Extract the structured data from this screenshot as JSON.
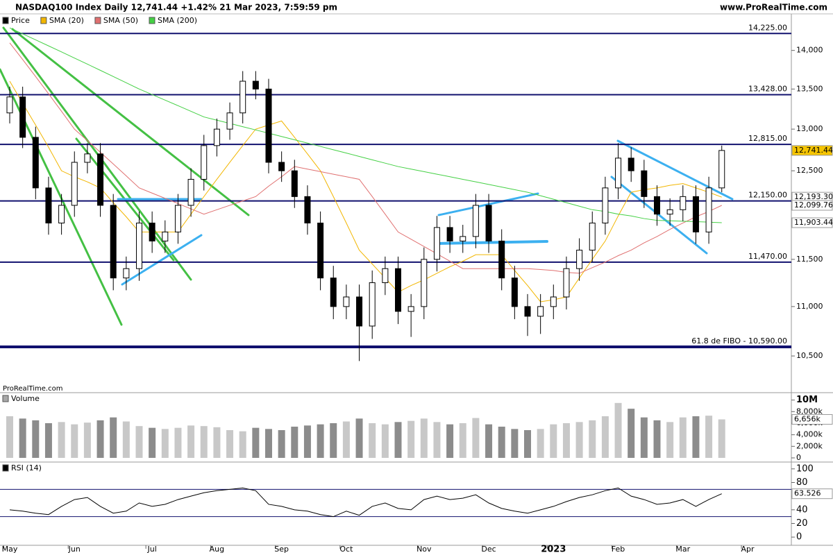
{
  "chart_data": {
    "type": "candlestick",
    "title": "NASDAQ100 Index Daily 12,741.44 +1.42% 21 Mar 2023, 7:59:59 pm",
    "source": "www.ProRealTime.com",
    "watermark": "ProRealTime.com",
    "price_name": "Price",
    "log_scale": true,
    "up_color": "#ffffff",
    "down_color": "#000000",
    "categories": [
      "May",
      null,
      null,
      null,
      null,
      "Jun",
      null,
      null,
      null,
      null,
      null,
      "Jul",
      null,
      null,
      null,
      null,
      "Aug",
      null,
      null,
      null,
      null,
      "Sep",
      null,
      null,
      null,
      null,
      "Oct",
      null,
      null,
      null,
      null,
      null,
      "Nov",
      null,
      null,
      null,
      null,
      "Dec",
      null,
      null,
      null,
      null,
      "2023",
      null,
      null,
      null,
      null,
      "Feb",
      null,
      null,
      null,
      null,
      "Mar",
      null,
      null,
      null,
      null,
      "Apr"
    ],
    "open": [
      13200,
      13400,
      12900,
      12300,
      11900,
      12100,
      12600,
      12700,
      12100,
      11300,
      11400,
      11900,
      11700,
      11800,
      12100,
      12400,
      12800,
      13000,
      13200,
      13600,
      13500,
      12600,
      12500,
      12200,
      11900,
      11300,
      11000,
      11100,
      10800,
      11250,
      11400,
      10950,
      11000,
      11500,
      11850,
      11700,
      11750,
      12100,
      11700,
      11300,
      11000,
      10900,
      11000,
      11100,
      11400,
      11600,
      11900,
      12300,
      12650,
      12500,
      12200,
      12000,
      12050,
      12200,
      11800,
      12300,
      null,
      null
    ],
    "high": [
      13530,
      13530,
      13030,
      12430,
      12230,
      12730,
      12830,
      12830,
      12230,
      11530,
      12030,
      12030,
      11930,
      12230,
      12530,
      12930,
      13130,
      13330,
      13730,
      13730,
      13630,
      12730,
      12630,
      12330,
      12030,
      11430,
      11230,
      11230,
      11380,
      11530,
      11530,
      11130,
      11630,
      11980,
      11980,
      11880,
      12230,
      12230,
      11830,
      11430,
      11130,
      11130,
      11230,
      11530,
      11730,
      12030,
      12430,
      12830,
      12780,
      12630,
      12330,
      12180,
      12330,
      12330,
      12430,
      12800,
      null,
      null
    ],
    "low": [
      13070,
      12770,
      12170,
      11770,
      11770,
      11970,
      12470,
      11970,
      11170,
      11170,
      11270,
      11570,
      11570,
      11670,
      11970,
      12270,
      12670,
      12870,
      13070,
      13370,
      12470,
      12370,
      12070,
      11770,
      11170,
      10870,
      10870,
      10450,
      10670,
      11120,
      10820,
      10690,
      10870,
      11370,
      11570,
      11570,
      11620,
      11570,
      11170,
      10870,
      10700,
      10720,
      10870,
      10970,
      11270,
      11470,
      11770,
      12170,
      12370,
      12070,
      11870,
      11870,
      11920,
      11670,
      11670,
      12250,
      null,
      null
    ],
    "close": [
      13400,
      12900,
      12300,
      11900,
      12100,
      12600,
      12700,
      12100,
      11300,
      11400,
      11900,
      11700,
      11800,
      12100,
      12400,
      12800,
      13000,
      13200,
      13600,
      13500,
      12600,
      12500,
      12200,
      11900,
      11300,
      11000,
      11100,
      10800,
      11250,
      11400,
      10950,
      11000,
      11500,
      11850,
      11700,
      11750,
      12100,
      11700,
      11300,
      11000,
      10900,
      11000,
      11100,
      11400,
      11600,
      11900,
      12300,
      12650,
      12500,
      12200,
      12000,
      12050,
      12200,
      11800,
      12300,
      12741.44,
      null,
      null
    ],
    "close_label": "12,741.44",
    "series": [
      {
        "name": "SMA (20)",
        "color": "#f2b600",
        "last_label": "12,193.30",
        "values": [
          13600,
          13320,
          13050,
          12780,
          12500,
          12430,
          12370,
          12300,
          12130,
          11970,
          11800,
          11800,
          11800,
          11800,
          12000,
          12200,
          12400,
          12600,
          12800,
          13000,
          13050,
          13100,
          12900,
          12700,
          12500,
          12200,
          11900,
          11600,
          11450,
          11300,
          11150,
          11220,
          11280,
          11350,
          11420,
          11480,
          11550,
          11550,
          11550,
          11380,
          11220,
          11050,
          11070,
          11100,
          11300,
          11500,
          11700,
          11980,
          12250,
          12280,
          12300,
          12330,
          12350,
          12300,
          12250,
          12193.3,
          null,
          null
        ]
      },
      {
        "name": "SMA (50)",
        "color": "#e07070",
        "last_label": "12,099.76",
        "values": [
          14100,
          13880,
          13660,
          13440,
          13220,
          13000,
          12860,
          12720,
          12580,
          12440,
          12300,
          12240,
          12180,
          12120,
          12060,
          12000,
          12050,
          12100,
          12150,
          12200,
          12320,
          12430,
          12550,
          12520,
          12490,
          12460,
          12430,
          12400,
          12200,
          12000,
          11800,
          11720,
          11640,
          11560,
          11480,
          11400,
          11400,
          11400,
          11400,
          11400,
          11400,
          11390,
          11380,
          11360,
          11350,
          11410,
          11470,
          11540,
          11600,
          11680,
          11750,
          11830,
          11900,
          11970,
          12030,
          12099.76,
          null,
          null
        ]
      },
      {
        "name": "SMA (200)",
        "color": "#44d044",
        "last_label": "11,903.44",
        "values": [
          14300,
          14220,
          14140,
          14060,
          13980,
          13900,
          13820,
          13740,
          13660,
          13580,
          13500,
          13430,
          13360,
          13290,
          13220,
          13150,
          13110,
          13070,
          13030,
          12990,
          12950,
          12910,
          12870,
          12830,
          12790,
          12750,
          12710,
          12670,
          12630,
          12590,
          12550,
          12520,
          12490,
          12460,
          12430,
          12400,
          12370,
          12340,
          12310,
          12280,
          12250,
          12210,
          12170,
          12130,
          12090,
          12050,
          12030,
          12000,
          11980,
          11950,
          11930,
          11925,
          11920,
          11915,
          11910,
          11903.44,
          null,
          null
        ]
      }
    ],
    "ylim": [
      10150,
      14490
    ],
    "yticks": [
      {
        "value": 10500,
        "label": "10,500"
      },
      {
        "value": 11000,
        "label": "11,000"
      },
      {
        "value": 11500,
        "label": "11,500"
      },
      {
        "value": 12500,
        "label": "12,500"
      },
      {
        "value": 13000,
        "label": "13,000"
      },
      {
        "value": 13500,
        "label": "13,500"
      },
      {
        "value": 14000,
        "label": "14,000"
      }
    ],
    "levels": [
      {
        "value": 14225,
        "label": "14,225.00"
      },
      {
        "value": 13428,
        "label": "13,428.00"
      },
      {
        "value": 12815,
        "label": "12,815.00"
      },
      {
        "value": 12150,
        "label": "12,150.00"
      },
      {
        "value": 11470,
        "label": "11,470.00"
      },
      {
        "value": 10590,
        "label": "61.8 de FIBO -  10,590.00"
      }
    ],
    "volume": {
      "name": "Volume",
      "color": "#a8a8a8",
      "last_label": "6,656k",
      "ylim": [
        0,
        10800
      ],
      "yticks": [
        0,
        {
          "value": 2000,
          "label": "2,000k"
        },
        {
          "value": 4000,
          "label": "4,000k"
        },
        {
          "value": 6000,
          "label": "6,000k"
        },
        {
          "value": 8000,
          "label": "8,000k"
        },
        {
          "value": 10000,
          "label": "10M"
        }
      ],
      "values": [
        7200,
        6800,
        6500,
        6000,
        6200,
        5800,
        6100,
        6500,
        7000,
        6300,
        5500,
        5200,
        5000,
        5200,
        5600,
        5500,
        5300,
        4800,
        4600,
        5200,
        5000,
        4800,
        5400,
        5600,
        5800,
        6000,
        6300,
        6800,
        6000,
        5800,
        6200,
        6400,
        6800,
        6200,
        5800,
        6000,
        6900,
        5800,
        5400,
        5000,
        4800,
        5000,
        5800,
        6000,
        6200,
        6500,
        7200,
        9500,
        8500,
        7000,
        6500,
        6200,
        7000,
        7200,
        7300,
        6656,
        null,
        null
      ]
    },
    "rsi": {
      "name": "RSI (14)",
      "color": "#000000",
      "ylim": [
        -10,
        110
      ],
      "yticks": [
        0,
        20,
        40,
        60,
        80,
        100
      ],
      "levels": [
        30,
        70
      ],
      "values": [
        40,
        38,
        35,
        33,
        45,
        55,
        58,
        45,
        35,
        38,
        50,
        45,
        48,
        55,
        60,
        65,
        68,
        70,
        72,
        68,
        48,
        45,
        40,
        38,
        33,
        30,
        38,
        32,
        45,
        50,
        42,
        40,
        55,
        60,
        55,
        57,
        62,
        50,
        42,
        38,
        35,
        40,
        45,
        52,
        58,
        62,
        68,
        72,
        60,
        55,
        48,
        50,
        55,
        45,
        55,
        63.526,
        null,
        null
      ]
    }
  }
}
